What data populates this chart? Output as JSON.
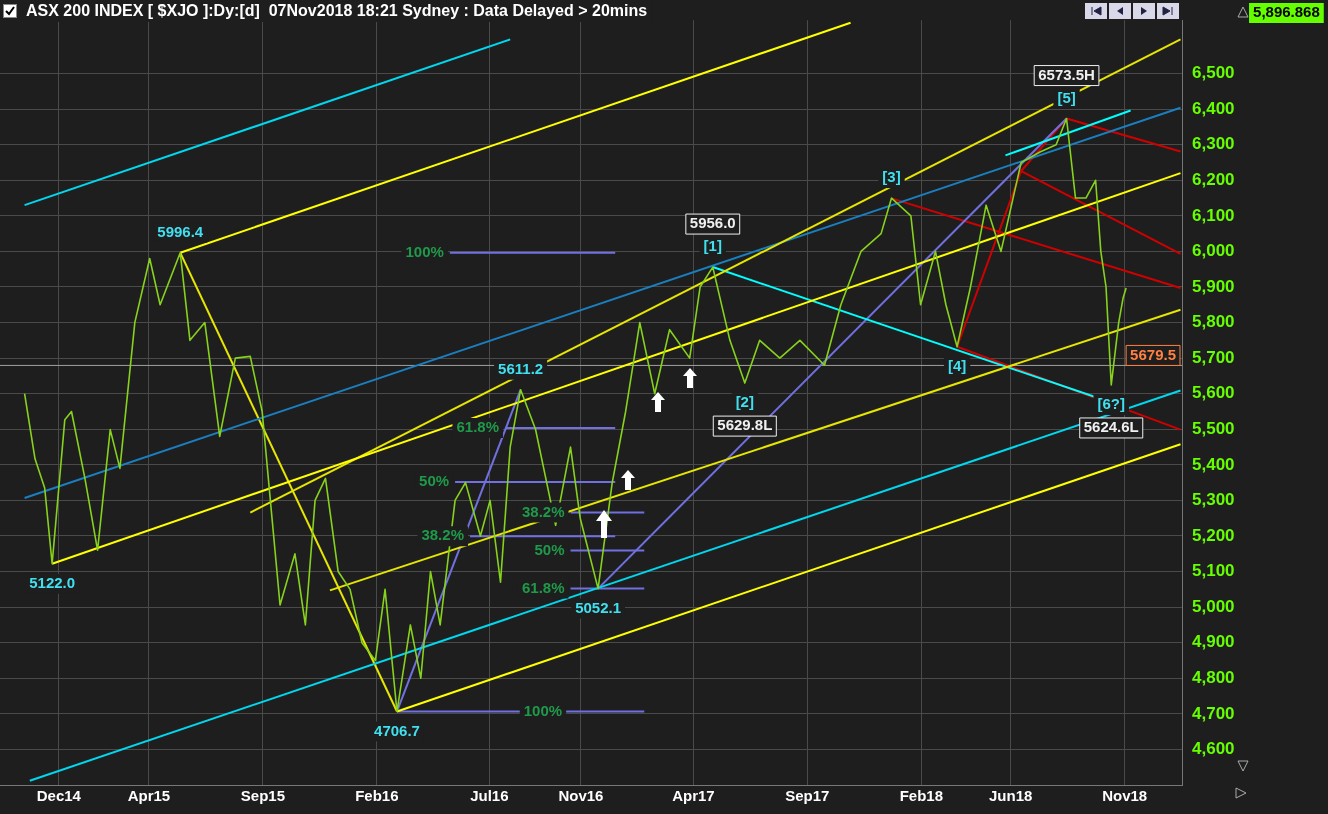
{
  "chart_data": {
    "type": "line",
    "title": "ASX 200 INDEX [ $XJO ]:Dy:[d]  07Nov2018 18:21 Sydney : Data Delayed > 20mins",
    "x": [
      "2014-10-16",
      "2014-10-30",
      "2014-11-12",
      "2014-11-22",
      "2014-12-09",
      "2014-12-18",
      "2015-01-05",
      "2015-01-22",
      "2015-02-08",
      "2015-02-21",
      "2015-03-13",
      "2015-04-02",
      "2015-04-16",
      "2015-05-13",
      "2015-05-26",
      "2015-06-15",
      "2015-07-05",
      "2015-07-26",
      "2015-08-15",
      "2015-08-31",
      "2015-09-11",
      "2015-09-24",
      "2015-10-14",
      "2015-10-28",
      "2015-11-10",
      "2015-11-24",
      "2015-12-11",
      "2015-12-27",
      "2016-01-12",
      "2016-01-30",
      "2016-02-12",
      "2016-02-28",
      "2016-03-17",
      "2016-03-31",
      "2016-04-13",
      "2016-04-26",
      "2016-05-16",
      "2016-05-30",
      "2016-06-19",
      "2016-07-02",
      "2016-07-16",
      "2016-07-29",
      "2016-08-12",
      "2016-09-01",
      "2016-09-21",
      "2016-09-28",
      "2016-10-18",
      "2016-10-31",
      "2016-11-24",
      "2016-12-13",
      "2016-12-31",
      "2017-01-19",
      "2017-02-08",
      "2017-02-28",
      "2017-03-27",
      "2017-04-10",
      "2017-04-27",
      "2017-05-20",
      "2017-06-09",
      "2017-06-29",
      "2017-07-26",
      "2017-08-22",
      "2017-09-24",
      "2017-10-16",
      "2017-11-12",
      "2017-12-09",
      "2017-12-23",
      "2018-01-18",
      "2018-01-31",
      "2018-02-20",
      "2018-03-06",
      "2018-03-21",
      "2018-04-08",
      "2018-04-29",
      "2018-05-19",
      "2018-06-15",
      "2018-07-11",
      "2018-08-01",
      "2018-08-15",
      "2018-08-27",
      "2018-09-10",
      "2018-09-23",
      "2018-09-30",
      "2018-10-07",
      "2018-10-14",
      "2018-10-24",
      "2018-10-30",
      "2018-11-03"
    ],
    "series": [
      {
        "color": "#86d21c",
        "values": [
          5600,
          5417,
          5335,
          5122,
          5527,
          5550,
          5362,
          5160,
          5499,
          5390,
          5800,
          5980,
          5850,
          5996.4,
          5750,
          5800,
          5480,
          5700,
          5705,
          5550,
          5300,
          5006,
          5150,
          4950,
          5300,
          5362,
          5100,
          5050,
          4900,
          4850,
          5050,
          4706.7,
          4950,
          4800,
          5100,
          4950,
          5300,
          5350,
          5200,
          5300,
          5070,
          5450,
          5611.2,
          5500,
          5300,
          5230,
          5450,
          5250,
          5052.1,
          5350,
          5550,
          5800,
          5600,
          5780,
          5700,
          5900,
          5956,
          5750,
          5629.8,
          5750,
          5700,
          5750,
          5680,
          5850,
          6000,
          6050,
          6150,
          6100,
          5850,
          6000,
          5850,
          5732,
          5900,
          6130,
          6000,
          6250,
          6280,
          6300,
          6373.5,
          6150,
          6150,
          6200,
          6000,
          5900,
          5624.6,
          5800,
          5870,
          5896.868
        ]
      },
      {
        "type": "line",
        "color": "#ffff00",
        "x": [
          "2014-11-22",
          "2019-01-15"
        ],
        "values": [
          5122,
          6220
        ]
      },
      {
        "type": "line",
        "color": "#ffff00",
        "x": [
          "2015-05-13",
          "2017-10-29"
        ],
        "values": [
          5996.4,
          6643
        ]
      },
      {
        "type": "line",
        "color": "#ffff00",
        "x": [
          "2016-02-28",
          "2019-01-15"
        ],
        "values": [
          4706.7,
          5458
        ]
      },
      {
        "type": "line",
        "color": "#e6e600",
        "x": [
          "2015-08-15",
          "2019-01-15"
        ],
        "values": [
          5266,
          6596
        ]
      },
      {
        "type": "line",
        "color": "#e6e600",
        "x": [
          "2015-11-30",
          "2019-01-15"
        ],
        "values": [
          5047,
          5836
        ]
      },
      {
        "type": "line",
        "color": "#00d8f0",
        "x": [
          "2014-10-16",
          "2016-07-29"
        ],
        "values": [
          6130,
          6596
        ]
      },
      {
        "type": "line",
        "color": "#00d8f0",
        "x": [
          "2014-10-23",
          "2019-01-15"
        ],
        "values": [
          4512,
          5609
        ]
      },
      {
        "type": "line",
        "color": "#1a7fc0",
        "x": [
          "2014-10-16",
          "2019-01-15"
        ],
        "values": [
          5307,
          6404
        ]
      },
      {
        "type": "line",
        "color": "#00ffff",
        "x": [
          "2017-04-27",
          "2018-11-05"
        ],
        "values": [
          5956,
          5560
        ]
      },
      {
        "type": "line",
        "color": "#00ffff",
        "x": [
          "2018-05-25",
          "2018-11-09"
        ],
        "values": [
          6270,
          6396
        ]
      },
      {
        "type": "line",
        "color": "#e6e600",
        "x": [
          "2015-05-13",
          "2016-02-28"
        ],
        "values": [
          5996.4,
          4706.7
        ]
      },
      {
        "type": "line",
        "color": "#7070e0",
        "x": [
          "2016-02-28",
          "2016-08-12"
        ],
        "values": [
          4706.7,
          5611.2
        ]
      },
      {
        "type": "line",
        "color": "#7070e0",
        "x": [
          "2016-11-24",
          "2018-08-15"
        ],
        "values": [
          5052.1,
          6373.5
        ]
      },
      {
        "type": "line",
        "color": "#d00000",
        "x": [
          "2018-08-15",
          "2019-01-15"
        ],
        "values": [
          6373.5,
          6281
        ]
      },
      {
        "type": "line",
        "color": "#d00000",
        "x": [
          "2018-03-21",
          "2018-06-15",
          "2018-08-15"
        ],
        "values": [
          5732,
          6226,
          6373.5
        ]
      },
      {
        "type": "line",
        "color": "#d00000",
        "x": [
          "2017-12-23",
          "2019-01-15"
        ],
        "values": [
          6149,
          5897
        ]
      },
      {
        "type": "line",
        "color": "#d00000",
        "x": [
          "2018-03-21",
          "2019-01-15"
        ],
        "values": [
          5732,
          5499
        ]
      },
      {
        "type": "line",
        "color": "#d00000",
        "x": [
          "2018-06-15",
          "2019-01-15"
        ],
        "values": [
          6226,
          5993
        ]
      },
      {
        "type": "line",
        "color": "#7070e0",
        "x": [
          "2016-05-09",
          "2016-12-17"
        ],
        "values": [
          5996.4,
          5996.4
        ]
      },
      {
        "type": "line",
        "color": "#7070e0",
        "x": [
          "2016-06-05",
          "2016-12-17"
        ],
        "values": [
          5199.4,
          5199.4
        ]
      },
      {
        "type": "line",
        "color": "#7070e0",
        "x": [
          "2016-07-22",
          "2016-12-17"
        ],
        "values": [
          5503.7,
          5503.7
        ]
      },
      {
        "type": "line",
        "color": "#7070e0",
        "x": [
          "2016-05-16",
          "2016-12-17"
        ],
        "values": [
          5351.5,
          5351.5
        ]
      },
      {
        "type": "line",
        "color": "#7070e0",
        "x": [
          "2016-10-18",
          "2017-01-25"
        ],
        "values": [
          5265.7,
          5265.7
        ]
      },
      {
        "type": "line",
        "color": "#7070e0",
        "x": [
          "2016-10-18",
          "2017-01-25"
        ],
        "values": [
          5159,
          5159
        ]
      },
      {
        "type": "line",
        "color": "#7070e0",
        "x": [
          "2016-10-18",
          "2017-01-25"
        ],
        "values": [
          5052.2,
          5052.2
        ]
      },
      {
        "type": "line",
        "color": "#7070e0",
        "x": [
          "2016-02-28",
          "2017-01-25"
        ],
        "values": [
          4706.7,
          4706.7
        ]
      }
    ],
    "xlim": [
      "2014-09-13",
      "2019-01-17"
    ],
    "xticks": [
      {
        "value": "2014-12-01",
        "label": "Dec14"
      },
      {
        "value": "2015-04-01",
        "label": "Apr15"
      },
      {
        "value": "2015-09-01",
        "label": "Sep15"
      },
      {
        "value": "2016-02-01",
        "label": "Feb16"
      },
      {
        "value": "2016-07-01",
        "label": "Jul16"
      },
      {
        "value": "2016-11-01",
        "label": "Nov16"
      },
      {
        "value": "2017-04-01",
        "label": "Apr17"
      },
      {
        "value": "2017-09-01",
        "label": "Sep17"
      },
      {
        "value": "2018-02-01",
        "label": "Feb18"
      },
      {
        "value": "2018-06-01",
        "label": "Jun18"
      },
      {
        "value": "2018-11-01",
        "label": "Nov18"
      }
    ],
    "ylim": [
      4500,
      6650
    ],
    "yticks": [
      {
        "value": 4600,
        "label": "4,600"
      },
      {
        "value": 4700,
        "label": "4,700"
      },
      {
        "value": 4800,
        "label": "4,800"
      },
      {
        "value": 4900,
        "label": "4,900"
      },
      {
        "value": 5000,
        "label": "5,000"
      },
      {
        "value": 5100,
        "label": "5,100"
      },
      {
        "value": 5200,
        "label": "5,200"
      },
      {
        "value": 5300,
        "label": "5,300"
      },
      {
        "value": 5400,
        "label": "5,400"
      },
      {
        "value": 5500,
        "label": "5,500"
      },
      {
        "value": 5600,
        "label": "5,600"
      },
      {
        "value": 5700,
        "label": "5,700"
      },
      {
        "value": 5800,
        "label": "5,800"
      },
      {
        "value": 5900,
        "label": "5,900"
      },
      {
        "value": 6000,
        "label": "6,000"
      },
      {
        "value": 6100,
        "label": "6,100"
      },
      {
        "value": 6200,
        "label": "6,200"
      },
      {
        "value": 6300,
        "label": "6,300"
      },
      {
        "value": 6400,
        "label": "6,400"
      },
      {
        "value": 6500,
        "label": "6,500"
      }
    ],
    "ref_lines": [
      {
        "axis": "y",
        "value": 5679.5,
        "label": "5679.5",
        "color": "#a0a0a0"
      }
    ],
    "grid": true,
    "marker": "none",
    "annotations": [
      "5,896.868",
      {
        "text": "[1]",
        "x": "2017-04-27",
        "y": 5956
      },
      {
        "text": "[2]",
        "x": "2017-06-09",
        "y": 5629.8
      },
      {
        "text": "[3]",
        "x": "2017-12-23",
        "y": 6150
      },
      {
        "text": "[4]",
        "x": "2018-03-21",
        "y": 5732
      },
      {
        "text": "[5]",
        "x": "2018-08-15",
        "y": 6373.5
      },
      {
        "text": "[6?]",
        "x": "2018-10-14",
        "y": 5624.6
      },
      {
        "text": "5122.0",
        "x": "2014-11-22",
        "y": 5122
      },
      {
        "text": "5996.4",
        "x": "2015-05-13",
        "y": 5996.4
      },
      {
        "text": "4706.7",
        "x": "2016-02-28",
        "y": 4706.7
      },
      {
        "text": "5611.2",
        "x": "2016-08-12",
        "y": 5611.2
      },
      {
        "text": "5052.1",
        "x": "2016-11-24",
        "y": 5052.1
      },
      {
        "text": "5956.0",
        "x": "2017-04-27",
        "y": 5956
      },
      {
        "text": "5629.8L",
        "x": "2017-06-09",
        "y": 5629.8
      },
      {
        "text": "6573.5H",
        "x": "2018-08-15",
        "y": 6373.5
      },
      {
        "text": "5624.6L",
        "x": "2018-10-14",
        "y": 5624.6
      },
      {
        "text": "100%",
        "x": "2016-05-09",
        "y": 5996.4
      },
      {
        "text": "61.8%",
        "x": "2016-07-22",
        "y": 5503.7
      },
      {
        "text": "50%",
        "x": "2016-05-16",
        "y": 5351.5
      },
      {
        "text": "38.2%",
        "x": "2016-06-05",
        "y": 5199.4
      },
      {
        "text": "38.2%",
        "x": "2016-10-18",
        "y": 5265.7
      },
      {
        "text": "50%",
        "x": "2016-10-18",
        "y": 5159
      },
      {
        "text": "61.8%",
        "x": "2016-10-18",
        "y": 5052.2
      },
      {
        "text": "100%",
        "x": "2016-09-11",
        "y": 4706.7
      }
    ]
  }
}
